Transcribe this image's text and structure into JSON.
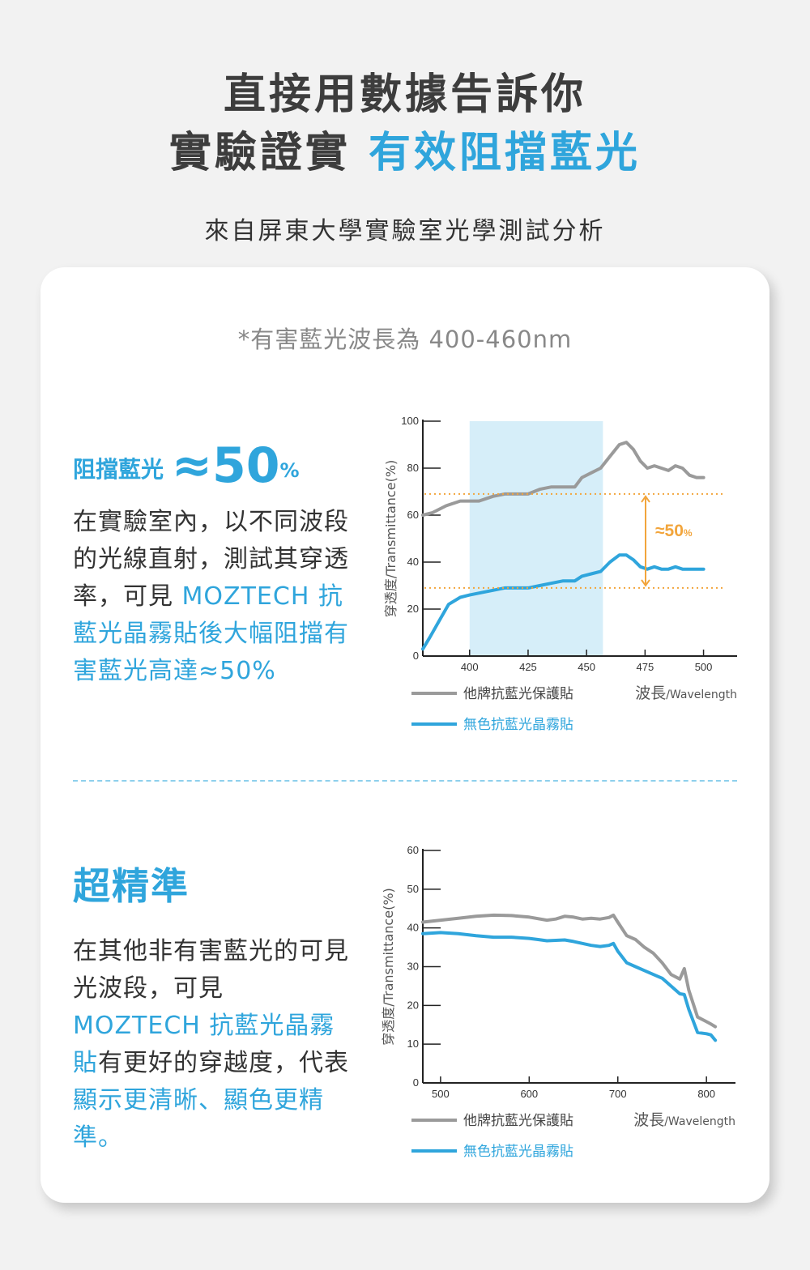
{
  "header": {
    "title_line1": "直接用數據告訴你",
    "title_line2_dark": "實驗證實",
    "title_line2_accent": "有效阻擋藍光",
    "subtitle": "來自屏東大學實驗室光學測試分析"
  },
  "note": "*有害藍光波長為 400-460nm",
  "section1": {
    "headline_label": "阻擋藍光",
    "headline_value": "≈50",
    "headline_unit": "%",
    "body_plain": "在實驗室內，以不同波段的光線直射，測試其穿透率，可見 ",
    "body_blue": "MOZTECH 抗藍光晶霧貼後大幅阻擋有害藍光高達≈50%"
  },
  "section2": {
    "headline": "超精準",
    "body_plain1": "在其他非有害藍光的可見光波段，可見 ",
    "body_blue1": "MOZTECH 抗藍光晶霧貼",
    "body_plain2": "有更好的穿越度，代表",
    "body_blue2": "顯示更清晰、顯色更精準。"
  },
  "colors": {
    "accent": "#2fa5dc",
    "grey_series": "#9a9a9a",
    "highlight_band": "#d6eef9",
    "annotation": "#f2a53c"
  },
  "chart_data": [
    {
      "type": "line",
      "ylabel": "穿透度/Transmittance(%)",
      "xlabel_zh": "波長",
      "xlabel_en": "/Wavelength",
      "xlim": [
        380,
        505
      ],
      "ylim": [
        0,
        100
      ],
      "xticks": [
        400,
        425,
        450,
        475,
        500
      ],
      "yticks": [
        0,
        20,
        40,
        60,
        80,
        100
      ],
      "highlight_range": [
        400,
        457
      ],
      "annotation": {
        "text_main": "≈50",
        "text_unit": "%",
        "y_top": 69,
        "y_bottom": 29
      },
      "series": [
        {
          "name": "他牌抗藍光保護貼",
          "color": "#9a9a9a",
          "x": [
            380,
            384,
            390,
            396,
            400,
            404,
            410,
            415,
            420,
            425,
            430,
            435,
            440,
            445,
            448,
            452,
            456,
            460,
            464,
            467,
            470,
            473,
            476,
            479,
            482,
            485,
            488,
            491,
            494,
            497,
            500
          ],
          "y": [
            60,
            61,
            64,
            66,
            66,
            66,
            68,
            69,
            69,
            69,
            71,
            72,
            72,
            72,
            76,
            78,
            80,
            85,
            90,
            91,
            88,
            83,
            80,
            81,
            80,
            79,
            81,
            80,
            77,
            76,
            76
          ]
        },
        {
          "name": "無色抗藍光晶霧貼",
          "color": "#2fa5dc",
          "x": [
            380,
            383,
            387,
            391,
            396,
            400,
            405,
            410,
            415,
            420,
            425,
            430,
            435,
            440,
            445,
            448,
            452,
            456,
            460,
            464,
            467,
            470,
            473,
            476,
            479,
            482,
            485,
            488,
            491,
            494,
            497,
            500
          ],
          "y": [
            3,
            8,
            15,
            22,
            25,
            26,
            27,
            28,
            29,
            29,
            29,
            30,
            31,
            32,
            32,
            34,
            35,
            36,
            40,
            43,
            43,
            41,
            38,
            37,
            38,
            37,
            37,
            38,
            37,
            37,
            37,
            37
          ]
        }
      ]
    },
    {
      "type": "line",
      "ylabel": "穿透度/Transmittance(%)",
      "xlabel_zh": "波長",
      "xlabel_en": "/Wavelength",
      "xlim": [
        480,
        830
      ],
      "ylim": [
        0,
        60
      ],
      "xticks": [
        500,
        600,
        700,
        800
      ],
      "yticks": [
        0,
        10,
        20,
        30,
        40,
        50,
        60
      ],
      "series": [
        {
          "name": "他牌抗藍光保護貼",
          "color": "#9a9a9a",
          "x": [
            480,
            500,
            520,
            540,
            560,
            580,
            600,
            620,
            630,
            640,
            650,
            660,
            670,
            680,
            690,
            695,
            700,
            710,
            720,
            730,
            740,
            750,
            760,
            770,
            775,
            780,
            790,
            800,
            805,
            810
          ],
          "y": [
            41.5,
            42,
            42.5,
            43,
            43.3,
            43.2,
            42.8,
            42,
            42.3,
            43,
            42.8,
            42.3,
            42.5,
            42.3,
            42.7,
            43.3,
            41.5,
            38,
            37,
            35,
            33.5,
            31,
            28,
            26.8,
            29.5,
            24,
            17,
            15.8,
            15.2,
            14.5
          ]
        },
        {
          "name": "無色抗藍光晶霧貼",
          "color": "#2fa5dc",
          "x": [
            480,
            500,
            520,
            540,
            560,
            580,
            600,
            610,
            620,
            640,
            650,
            660,
            670,
            680,
            690,
            695,
            700,
            710,
            720,
            730,
            740,
            750,
            760,
            770,
            775,
            780,
            790,
            800,
            805,
            810
          ],
          "y": [
            38.5,
            38.8,
            38.5,
            38,
            37.6,
            37.6,
            37.3,
            37,
            36.7,
            36.9,
            36.5,
            36,
            35.5,
            35.2,
            35.5,
            36,
            34,
            31,
            30,
            29,
            28,
            27,
            25,
            23,
            22.8,
            19,
            13,
            12.7,
            12.4,
            11
          ]
        }
      ]
    }
  ]
}
